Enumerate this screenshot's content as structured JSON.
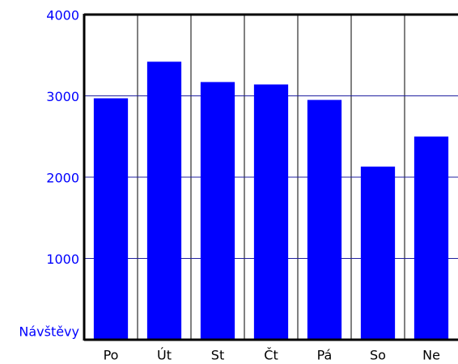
{
  "chart_data": {
    "type": "bar",
    "y_label": "Návštěvy",
    "categories": [
      "Po",
      "Út",
      "St",
      "Čt",
      "Pá",
      "So",
      "Ne"
    ],
    "values": [
      2970,
      3420,
      3170,
      3140,
      2950,
      2130,
      2500
    ],
    "color": "#0000ff",
    "grid_color": "#2020a0",
    "ylim": [
      0,
      4000
    ],
    "yticks": [
      1000,
      2000,
      3000,
      4000
    ],
    "grid": true
  }
}
